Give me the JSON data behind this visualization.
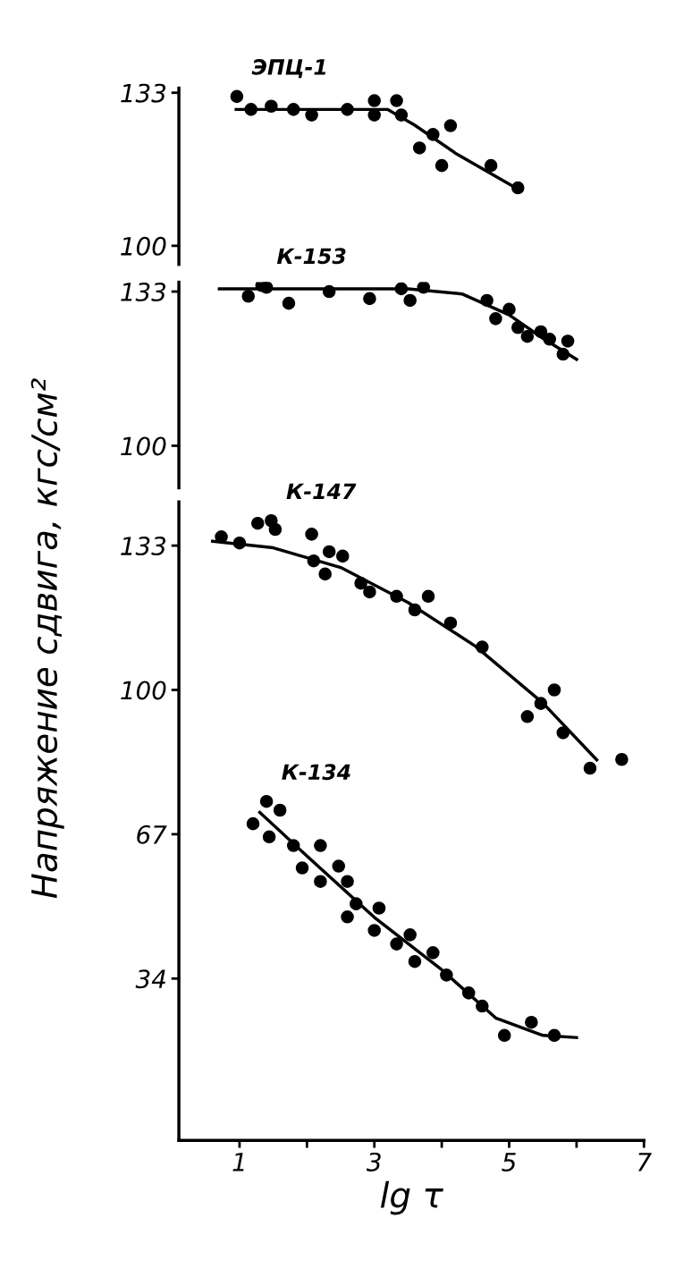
{
  "chart_data": [
    {
      "type": "scatter",
      "xlim": [
        0.1,
        7
      ],
      "xticks": [
        1,
        3,
        5,
        7
      ],
      "ylim": [
        96,
        134
      ],
      "yticks": [
        100,
        133
      ],
      "tick_labels": "y",
      "grid": false,
      "legend": false,
      "series": [
        {
          "name": "ЭПЦ-1",
          "color": "#000000",
          "marker": "circle",
          "x": [
            0.96,
            1.17,
            1.47,
            1.8,
            2.07,
            2.6,
            3.0,
            3.0,
            3.33,
            3.4,
            3.67,
            3.87,
            4.0,
            4.13,
            4.73,
            5.13
          ],
          "values": [
            132.2,
            129.4,
            130.1,
            129.4,
            128.2,
            129.4,
            128.2,
            131.3,
            131.3,
            128.2,
            121.1,
            124,
            117.3,
            125.9,
            117.3,
            112.5
          ]
        },
        {
          "type": "line",
          "color": "#000000",
          "x": [
            0.95,
            3.2,
            3.6,
            4.2,
            5.1
          ],
          "values": [
            129.4,
            129.4,
            126,
            120,
            112.5
          ]
        }
      ]
    },
    {
      "type": "scatter",
      "xlim": [
        0.1,
        7
      ],
      "xticks": [
        1,
        3,
        5,
        7
      ],
      "ylim": [
        91,
        135
      ],
      "yticks": [
        100,
        133
      ],
      "tick_labels": "y",
      "grid": false,
      "legend": false,
      "series": [
        {
          "name": "К-153",
          "color": "#000000",
          "marker": "circle",
          "x": [
            1.13,
            1.33,
            1.4,
            1.73,
            2.33,
            2.93,
            3.4,
            3.53,
            3.73,
            4.67,
            4.8,
            5.0,
            5.13,
            5.27,
            5.47,
            5.6,
            5.8,
            5.87
          ],
          "values": [
            132.0,
            134.3,
            133.9,
            130.5,
            133,
            131.5,
            133.6,
            131.1,
            133.9,
            131.1,
            127.2,
            129.2,
            125.3,
            123.4,
            124.4,
            122.8,
            119.6,
            122.4
          ]
        },
        {
          "type": "line",
          "color": "#000000",
          "x": [
            0.7,
            3.5,
            4.3,
            5.0,
            5.5,
            6.0
          ],
          "values": [
            133.6,
            133.6,
            132.5,
            128,
            123,
            118.5
          ]
        }
      ]
    },
    {
      "type": "scatter",
      "xlim": [
        0.1,
        7
      ],
      "xticks": [
        1,
        {
          "value": 2,
          "label": null
        },
        3,
        {
          "value": 4,
          "label": null
        },
        5,
        {
          "value": 6,
          "label": null
        },
        7
      ],
      "ylim": [
        -3,
        143
      ],
      "yticks": [
        34,
        67,
        100,
        133
      ],
      "grid": false,
      "legend": false,
      "xlabel": "lg τ",
      "ylabel": "Напряжение сдвига, кгс/см²",
      "series": [
        {
          "name": "К-147",
          "color": "#000000",
          "marker": "circle",
          "x": [
            0.73,
            1.0,
            1.27,
            1.47,
            1.53,
            2.07,
            2.1,
            2.33,
            2.27,
            2.53,
            2.8,
            2.93,
            3.33,
            3.6,
            3.8,
            4.13,
            4.6,
            5.27,
            5.47,
            5.67,
            5.8,
            6.2,
            6.67
          ],
          "values": [
            135.0,
            133.6,
            138.1,
            138.7,
            136.7,
            135.6,
            129.5,
            131.6,
            126.5,
            130.6,
            124.4,
            122.4,
            121.4,
            118.3,
            121.4,
            115.3,
            109.8,
            93.9,
            96.9,
            100,
            90.2,
            82.1,
            84.1
          ]
        },
        {
          "type": "line",
          "color": "#000000",
          "x": [
            0.6,
            1.5,
            2.5,
            3.5,
            4.5,
            5.5,
            6.3
          ],
          "values": [
            134,
            132.5,
            128,
            120,
            110,
            97,
            84
          ]
        },
        {
          "name": "К-134",
          "color": "#000000",
          "marker": "circle",
          "x": [
            1.2,
            1.4,
            1.44,
            1.6,
            1.8,
            1.93,
            2.2,
            2.2,
            2.47,
            2.6,
            2.6,
            2.73,
            3.0,
            3.07,
            3.33,
            3.53,
            3.6,
            3.87,
            4.07,
            4.4,
            4.6,
            4.93,
            5.33,
            5.67
          ],
          "values": [
            69.4,
            74.5,
            66.4,
            72.5,
            64.4,
            59.3,
            64.4,
            56.2,
            59.7,
            56.2,
            48.1,
            51.1,
            45,
            50.1,
            41.9,
            44,
            37.9,
            39.9,
            34.8,
            30.7,
            27.7,
            21,
            24,
            21
          ]
        },
        {
          "type": "line",
          "color": "#000000",
          "x": [
            1.3,
            2.0,
            3.0,
            4.0,
            4.8,
            5.5,
            6.0
          ],
          "values": [
            72,
            62,
            48,
            36,
            25,
            21,
            20.5
          ]
        }
      ]
    }
  ]
}
